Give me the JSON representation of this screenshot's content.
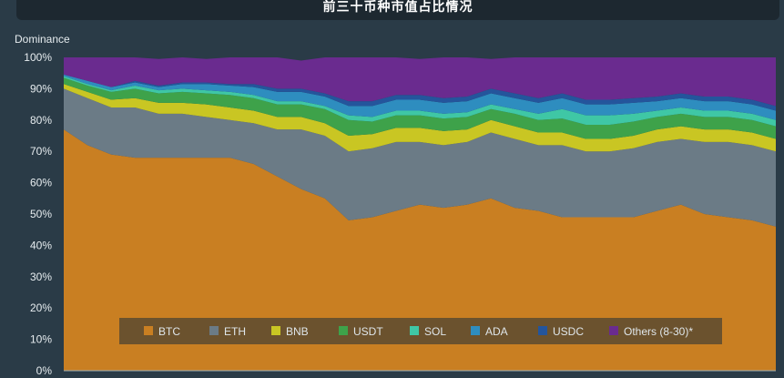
{
  "header": {
    "title": "前三十币种市值占比情况"
  },
  "chart_data": {
    "type": "area",
    "stacked": true,
    "title": "前三十币种市值占比情况",
    "ylabel": "Dominance",
    "ylim": [
      0,
      100
    ],
    "yticks": [
      "0%",
      "10%",
      "20%",
      "30%",
      "40%",
      "50%",
      "60%",
      "70%",
      "80%",
      "90%",
      "100%"
    ],
    "grid": false,
    "legend_position": "bottom-center",
    "x": [
      0,
      1,
      2,
      3,
      4,
      5,
      6,
      7,
      8,
      9,
      10,
      11,
      12,
      13,
      14,
      15,
      16,
      17,
      18,
      19,
      20,
      21,
      22,
      23,
      24,
      25,
      26,
      27,
      28,
      29,
      30
    ],
    "series": [
      {
        "name": "BTC",
        "color": "#c97f22",
        "values": [
          77,
          72,
          69,
          68,
          68,
          68,
          68,
          68,
          66,
          62,
          58,
          55,
          48,
          49,
          51,
          53,
          52,
          53,
          55,
          52,
          51,
          49,
          49,
          49,
          49,
          51,
          53,
          50,
          49,
          48,
          46
        ]
      },
      {
        "name": "ETH",
        "color": "#6b7b86",
        "values": [
          13,
          15,
          15,
          16,
          14,
          14,
          13,
          12,
          13,
          15,
          19,
          20,
          22,
          22,
          22,
          20,
          20,
          20,
          21,
          22,
          21,
          23,
          21,
          21,
          22,
          22,
          21,
          23,
          24,
          24,
          24
        ]
      },
      {
        "name": "BNB",
        "color": "#c9c623",
        "values": [
          1.5,
          2,
          2.5,
          3,
          3.5,
          3.5,
          4,
          4,
          4,
          4,
          4,
          4,
          5,
          4.5,
          4.5,
          4.5,
          4.5,
          4,
          4,
          4,
          4,
          4,
          4,
          4,
          4,
          4,
          4,
          4,
          4,
          4,
          4
        ]
      },
      {
        "name": "USDT",
        "color": "#3ea24a",
        "values": [
          2,
          2,
          2.5,
          3,
          3,
          3.5,
          3.5,
          4,
          4,
          4,
          4,
          4.5,
          5,
          4,
          4,
          4,
          4,
          4,
          3.5,
          4,
          4,
          4.5,
          4.5,
          4.5,
          4.5,
          4,
          4,
          4,
          4,
          4,
          4
        ]
      },
      {
        "name": "SOL",
        "color": "#3fc7a5",
        "values": [
          0.5,
          0.5,
          0.5,
          1,
          1,
          1,
          1,
          1,
          1,
          1,
          1,
          1,
          1.5,
          1.5,
          1.5,
          1.5,
          1.5,
          1.5,
          1.5,
          1.5,
          2,
          3,
          3,
          3,
          2.5,
          2,
          2,
          2,
          2,
          2,
          2
        ]
      },
      {
        "name": "ADA",
        "color": "#2e8dbf",
        "values": [
          0.5,
          1,
          1,
          1,
          1,
          1.5,
          2,
          2,
          2.5,
          3,
          3,
          3,
          3,
          3.5,
          3.5,
          3.5,
          3.5,
          3.5,
          3.5,
          3.5,
          3.5,
          3.5,
          3.5,
          3.5,
          3.5,
          3,
          3,
          3,
          3,
          3,
          3
        ]
      },
      {
        "name": "USDC",
        "color": "#24559c",
        "values": [
          0,
          0,
          0,
          0.5,
          0.5,
          0.5,
          0.5,
          0.5,
          1,
          1,
          1,
          1,
          1.5,
          1.5,
          1.5,
          1.5,
          1.5,
          1.5,
          1.5,
          1.5,
          1.5,
          1.5,
          1.5,
          1.5,
          1.5,
          1.5,
          1.5,
          1.5,
          1.5,
          1.5,
          1.5
        ]
      },
      {
        "name": "Others (8-30)*",
        "color": "#6a2b8f",
        "values": [
          5.5,
          7.5,
          9.5,
          7.5,
          8.5,
          8,
          7.5,
          8.5,
          8.5,
          10,
          9,
          11.5,
          14,
          14,
          12,
          11.5,
          13,
          12.5,
          9.5,
          11.5,
          13,
          11.5,
          13.5,
          13.5,
          13,
          12.5,
          11.5,
          12.5,
          12.5,
          13.5,
          15.5
        ]
      }
    ]
  }
}
